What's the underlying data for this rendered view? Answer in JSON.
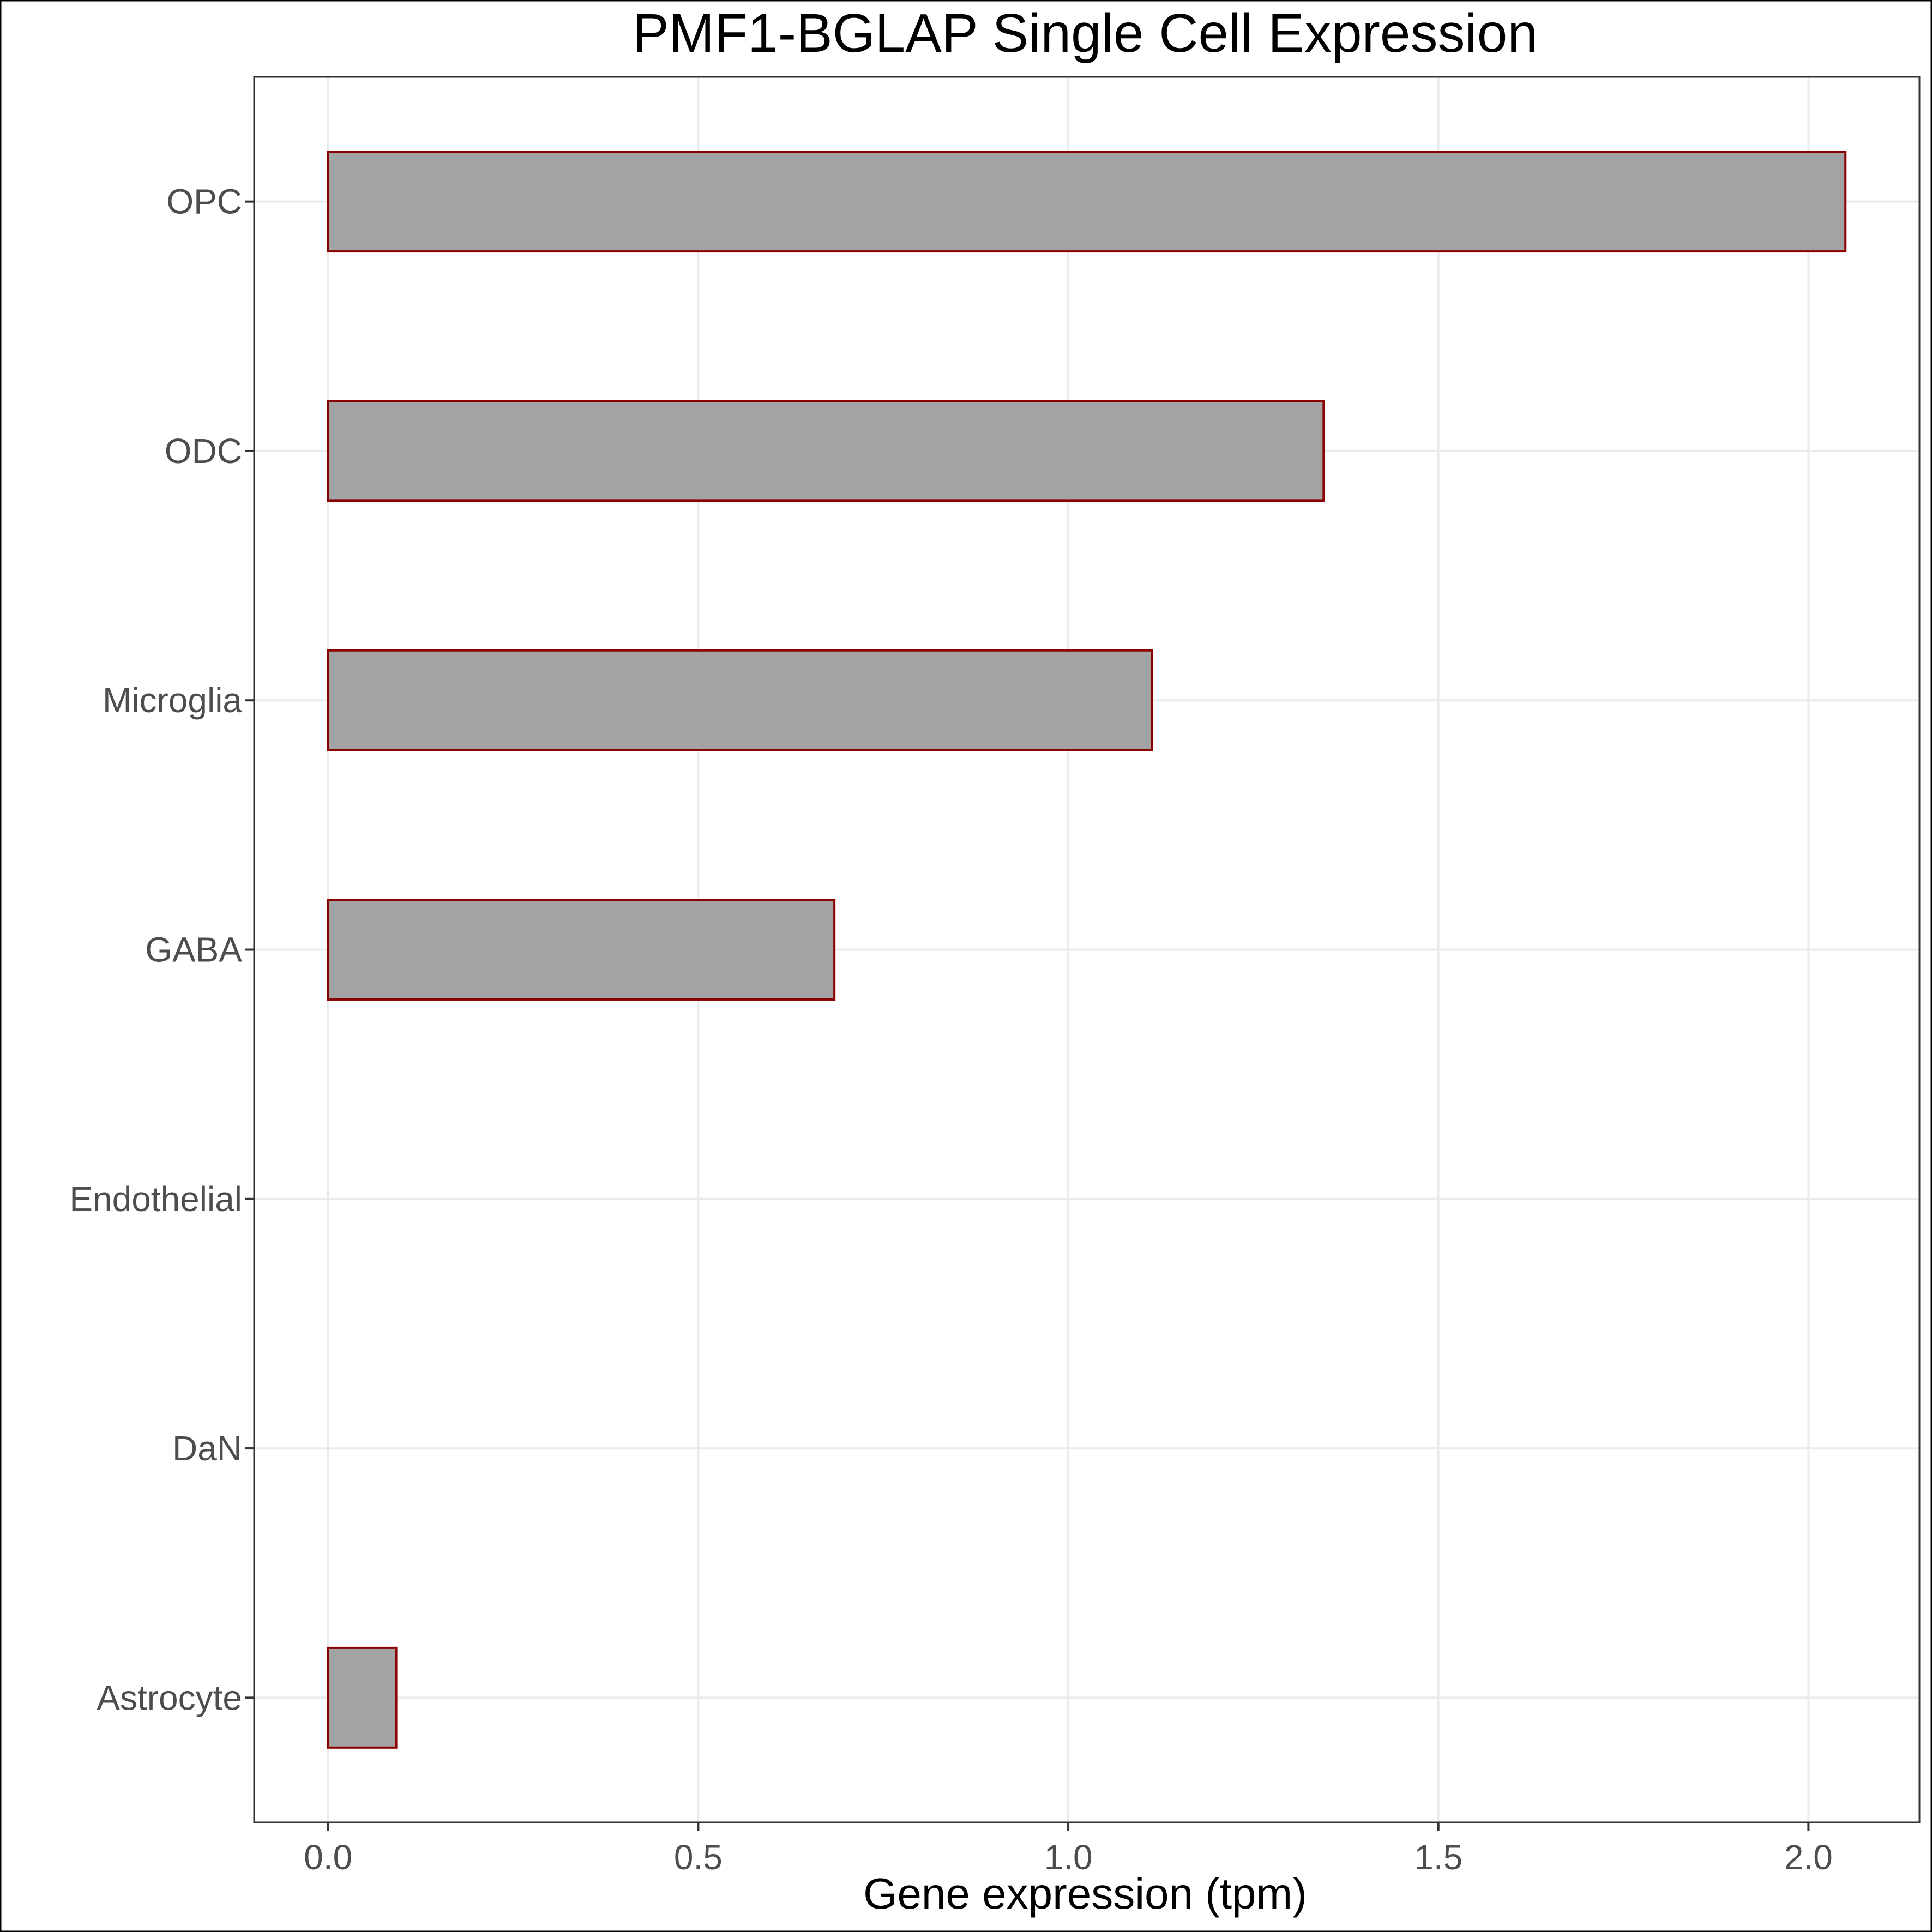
{
  "chart_data": {
    "type": "bar",
    "orientation": "horizontal",
    "title": "PMF1-BGLAP Single Cell Expression",
    "xlabel": "Gene expression (tpm)",
    "ylabel": "",
    "categories": [
      "OPC",
      "ODC",
      "Microglia",
      "GABA",
      "Endothelial",
      "DaN",
      "Astrocyte"
    ],
    "values": [
      2.05,
      1.345,
      1.113,
      0.684,
      0.0,
      0.0,
      0.092
    ],
    "xlim": [
      -0.1,
      2.15
    ],
    "xticks": [
      "0.0",
      "0.5",
      "1.0",
      "1.5",
      "2.0"
    ],
    "xtick_values": [
      0.0,
      0.5,
      1.0,
      1.5,
      2.0
    ],
    "grid": true,
    "legend": "none",
    "colors": {
      "bar_fill": "#a3a3a3",
      "bar_stroke": "#8b0000",
      "grid": "#ebebeb",
      "panel_border": "#333333",
      "tick_label": "#4d4d4d"
    }
  }
}
